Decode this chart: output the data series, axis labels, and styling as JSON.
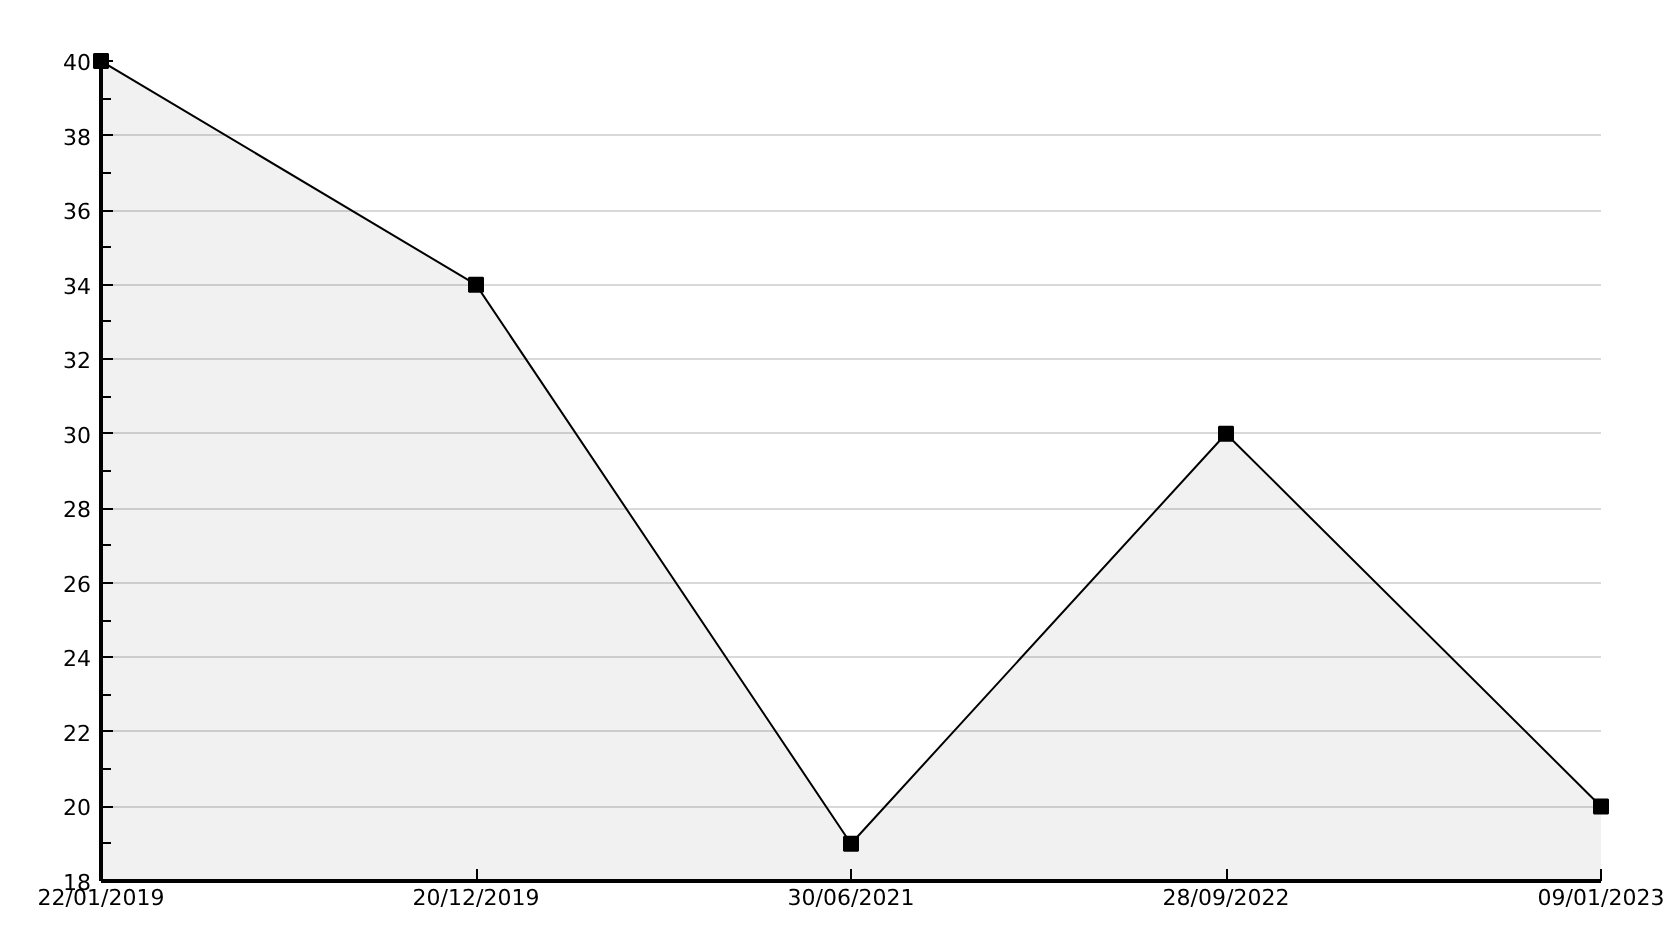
{
  "chart_data": {
    "type": "area",
    "categories": [
      "22/01/2019",
      "20/12/2019",
      "30/06/2021",
      "28/09/2022",
      "09/01/2023"
    ],
    "series": [
      {
        "color": "#000000",
        "values": [
          40,
          34,
          19,
          30,
          20
        ]
      }
    ],
    "ylim": [
      18,
      40
    ],
    "yticks": [
      18,
      {
        "value": 19,
        "label": null
      },
      20,
      {
        "value": 21,
        "label": null
      },
      22,
      {
        "value": 23,
        "label": null
      },
      24,
      {
        "value": 25,
        "label": null
      },
      26,
      {
        "value": 27,
        "label": null
      },
      28,
      {
        "value": 29,
        "label": null
      },
      30,
      {
        "value": 31,
        "label": null
      },
      32,
      {
        "value": 33,
        "label": null
      },
      34,
      {
        "value": 35,
        "label": null
      },
      36,
      {
        "value": 37,
        "label": null
      },
      38,
      {
        "value": 39,
        "label": null
      },
      40
    ],
    "grid": "y",
    "marker": "square",
    "line_style": "solid"
  }
}
